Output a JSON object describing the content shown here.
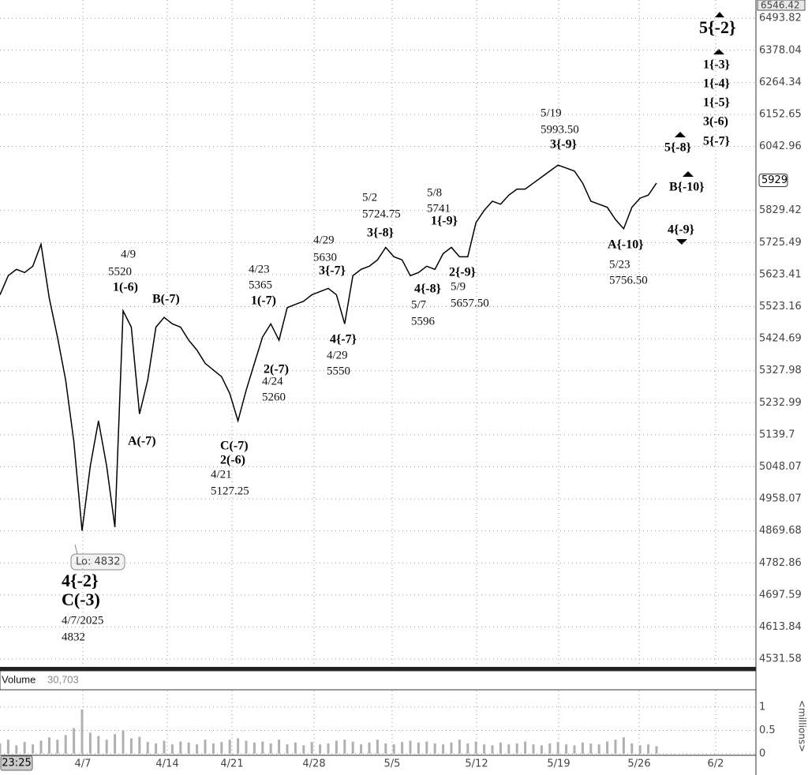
{
  "chart_data": [
    {
      "type": "line",
      "log_scale": true,
      "grid": true,
      "color": "#000000",
      "ylim": [
        4511.6,
        6546.42
      ],
      "yticks": [
        6493.82,
        6378.04,
        6264.34,
        6152.65,
        6042.96,
        5829.42,
        5725.49,
        5623.41,
        5523.16,
        5424.69,
        5327.98,
        5232.99,
        5139.7,
        5048.07,
        4958.07,
        4869.68,
        4782.86,
        4697.59,
        4613.84,
        4531.58
      ],
      "last_price": 5929,
      "date_labels": [
        "4/7",
        "4/14",
        "4/21",
        "4/28",
        "5/5",
        "5/12",
        "5/19",
        "5/26",
        "6/2"
      ],
      "time_label": "23:25",
      "values": [
        5560,
        5620,
        5640,
        5630,
        5650,
        5720,
        5550,
        5430,
        5300,
        5120,
        4870,
        5050,
        5180,
        5050,
        4880,
        5510,
        5460,
        5200,
        5300,
        5460,
        5490,
        5470,
        5460,
        5420,
        5390,
        5350,
        5330,
        5310,
        5260,
        5180,
        5270,
        5350,
        5430,
        5470,
        5420,
        5520,
        5530,
        5540,
        5560,
        5570,
        5580,
        5560,
        5470,
        5620,
        5640,
        5650,
        5670,
        5710,
        5680,
        5670,
        5620,
        5630,
        5650,
        5640,
        5690,
        5710,
        5680,
        5680,
        5790,
        5830,
        5860,
        5850,
        5880,
        5900,
        5900,
        5920,
        5940,
        5960,
        5980,
        5970,
        5960,
        5920,
        5860,
        5850,
        5840,
        5800,
        5770,
        5840,
        5870,
        5880,
        5920
      ],
      "annotations": [
        "4/9",
        "5520",
        "1(-6)",
        "B(-7)",
        "A(-7)",
        "C(-7)",
        "2(-6)",
        "4/21",
        "5127.25",
        "4/23",
        "5365",
        "1(-7)",
        "2(-7)",
        "4/24",
        "5260",
        "4/29",
        "5630",
        "3{-7}",
        "4{-7}",
        "4/29",
        "5550",
        "5/2",
        "5724.75",
        "3{-8}",
        "5/8",
        "5741",
        "1{-9}",
        "4{-8}",
        "5/7",
        "5596",
        "2{-9}",
        "5/9",
        "5657.50",
        "5/19",
        "5993.50",
        "3{-9}",
        "A{-10}",
        "5/23",
        "5756.50",
        "5{-8}",
        "B{-10}",
        "4{-9}",
        "5{-2}",
        "1{-3}",
        "1{-4}",
        "1{-5}",
        "3(-6)",
        "5{-7}",
        "4{-2}",
        "C(-3)",
        "4/7/2025",
        "4832",
        "Lo: 4832"
      ]
    },
    {
      "type": "bar",
      "title": "Volume",
      "last_volume": "30,703",
      "y_label": "<millions>",
      "color": "#b0b0b0",
      "ylim": [
        0,
        1.32
      ],
      "yticks": [
        0,
        0.5,
        1
      ],
      "values": [
        0.22,
        0.3,
        0.18,
        0.25,
        0.2,
        0.28,
        0.35,
        0.3,
        0.4,
        0.55,
        0.95,
        0.45,
        0.38,
        0.3,
        0.42,
        0.5,
        0.33,
        0.36,
        0.25,
        0.22,
        0.28,
        0.2,
        0.26,
        0.24,
        0.2,
        0.3,
        0.22,
        0.25,
        0.3,
        0.33,
        0.28,
        0.24,
        0.26,
        0.22,
        0.3,
        0.2,
        0.24,
        0.18,
        0.25,
        0.2,
        0.22,
        0.28,
        0.3,
        0.26,
        0.2,
        0.24,
        0.3,
        0.22,
        0.2,
        0.25,
        0.28,
        0.24,
        0.26,
        0.22,
        0.2,
        0.24,
        0.3,
        0.22,
        0.26,
        0.2,
        0.18,
        0.24,
        0.2,
        0.22,
        0.26,
        0.2,
        0.18,
        0.22,
        0.25,
        0.2,
        0.18,
        0.24,
        0.22,
        0.2,
        0.26,
        0.3,
        0.35,
        0.22,
        0.18,
        0.2,
        0.16
      ]
    }
  ]
}
